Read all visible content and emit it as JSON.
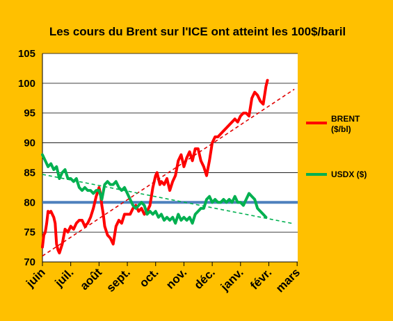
{
  "colors": {
    "background": "#ffc000",
    "plot_area": "#ffffff",
    "brent": "#ff0000",
    "usdx": "#00b050",
    "brent_trend": "#e00000",
    "usdx_trend": "#00b050",
    "reference_line": "#4f81bd",
    "gridline": "#000000"
  },
  "chart_data": {
    "type": "line",
    "title": "Les cours du Brent sur l'ICE  ont atteint les 100$/baril",
    "xlabel": "",
    "ylabel": "",
    "ylim": [
      70,
      105
    ],
    "yticks": [
      70,
      75,
      80,
      85,
      90,
      95,
      100,
      105
    ],
    "categories": [
      "juin",
      "juil.",
      "août",
      "sept.",
      "oct.",
      "nov.",
      "déc.",
      "janv.",
      "févr.",
      "mars"
    ],
    "grid": "horizontal",
    "legend_position": "right",
    "series": [
      {
        "name": "BRENT ($/bl)",
        "legend_lines": [
          "BRENT",
          "($/bl)"
        ],
        "color": "#ff0000",
        "x": [
          0,
          0.05,
          0.1,
          0.15,
          0.2,
          0.25,
          0.3,
          0.35,
          0.4,
          0.45,
          0.5,
          0.55,
          0.6,
          0.7,
          0.8,
          0.9,
          1.0,
          1.1,
          1.2,
          1.3,
          1.4,
          1.5,
          1.6,
          1.7,
          1.8,
          1.9,
          2.0,
          2.05,
          2.1,
          2.15,
          2.2,
          2.3,
          2.4,
          2.5,
          2.6,
          2.7,
          2.8,
          2.9,
          3.0,
          3.1,
          3.2,
          3.3,
          3.4,
          3.5,
          3.6,
          3.7,
          3.8,
          3.9,
          4.0,
          4.05,
          4.1,
          4.15,
          4.2,
          4.3,
          4.4,
          4.5,
          4.6,
          4.7,
          4.8,
          4.9,
          5.0,
          5.1,
          5.2,
          5.3,
          5.4,
          5.5,
          5.6,
          5.7,
          5.8,
          5.9,
          6.0,
          6.1,
          6.2,
          6.3,
          6.4,
          6.5,
          6.6,
          6.7,
          6.8,
          6.9,
          7.0,
          7.1,
          7.2,
          7.3,
          7.4,
          7.5,
          7.6,
          7.7,
          7.8,
          7.9,
          7.95
        ],
        "values": [
          72.5,
          74.5,
          75.0,
          76.5,
          78.5,
          78.3,
          78.5,
          78.0,
          77.5,
          76.5,
          73.0,
          72.0,
          71.5,
          73.0,
          75.5,
          75.0,
          76.0,
          75.5,
          76.5,
          77.0,
          77.0,
          76.0,
          76.5,
          77.5,
          79.0,
          81.0,
          82.5,
          81.5,
          79.5,
          78.0,
          76.0,
          74.5,
          74.0,
          73.0,
          76.0,
          77.0,
          76.5,
          78.0,
          78.0,
          78.0,
          79.0,
          79.5,
          78.5,
          79.0,
          78.0,
          78.5,
          79.5,
          82.5,
          84.5,
          85.0,
          84.0,
          83.0,
          83.5,
          83.0,
          84.0,
          82.0,
          83.5,
          84.5,
          87.0,
          88.0,
          86.0,
          87.5,
          88.5,
          87.0,
          89.0,
          89.0,
          87.0,
          86.0,
          84.5,
          87.0,
          90.0,
          91.0,
          91.0,
          91.5,
          92.0,
          92.5,
          93.0,
          93.5,
          94.0,
          93.5,
          94.5,
          95.0,
          95.0,
          94.5,
          97.5,
          98.5,
          98.0,
          97.0,
          96.5,
          99.5,
          100.5
        ]
      },
      {
        "name": "USDX ($)",
        "legend_lines": [
          "USDX ($)"
        ],
        "color": "#00b050",
        "x": [
          0,
          0.1,
          0.2,
          0.3,
          0.4,
          0.5,
          0.6,
          0.7,
          0.8,
          0.9,
          1.0,
          1.1,
          1.2,
          1.3,
          1.4,
          1.5,
          1.6,
          1.7,
          1.8,
          1.9,
          2.0,
          2.1,
          2.2,
          2.3,
          2.4,
          2.5,
          2.6,
          2.7,
          2.8,
          2.9,
          3.0,
          3.1,
          3.2,
          3.3,
          3.4,
          3.5,
          3.6,
          3.7,
          3.8,
          3.9,
          4.0,
          4.1,
          4.2,
          4.3,
          4.4,
          4.5,
          4.6,
          4.7,
          4.8,
          4.9,
          5.0,
          5.1,
          5.2,
          5.3,
          5.4,
          5.5,
          5.6,
          5.7,
          5.8,
          5.9,
          6.0,
          6.1,
          6.2,
          6.3,
          6.4,
          6.5,
          6.6,
          6.7,
          6.8,
          6.9,
          7.0,
          7.1,
          7.2,
          7.3,
          7.4,
          7.5,
          7.6,
          7.7,
          7.8,
          7.9
        ],
        "values": [
          88.0,
          87.0,
          86.0,
          86.5,
          85.5,
          86.0,
          84.0,
          85.0,
          85.5,
          84.0,
          84.0,
          83.5,
          84.0,
          82.5,
          82.0,
          82.5,
          82.0,
          82.0,
          81.5,
          82.0,
          82.0,
          80.5,
          83.0,
          83.5,
          83.0,
          83.0,
          83.5,
          82.5,
          82.0,
          82.5,
          81.5,
          80.5,
          79.5,
          79.0,
          79.5,
          80.0,
          79.5,
          78.0,
          78.5,
          78.0,
          78.5,
          77.5,
          78.0,
          77.0,
          77.5,
          77.0,
          77.5,
          76.5,
          78.0,
          77.0,
          77.5,
          77.0,
          77.5,
          76.5,
          78.0,
          78.5,
          79.0,
          79.0,
          80.5,
          81.0,
          80.0,
          80.5,
          80.0,
          80.0,
          80.5,
          80.0,
          80.5,
          80.0,
          81.0,
          80.0,
          80.0,
          79.5,
          80.5,
          81.5,
          81.0,
          80.5,
          79.0,
          78.5,
          78.0,
          77.5
        ]
      }
    ],
    "trendlines": [
      {
        "of": "BRENT ($/bl)",
        "x": [
          0,
          8.9
        ],
        "values": [
          71.0,
          99.0
        ]
      },
      {
        "of": "USDX ($)",
        "x": [
          0,
          8.9
        ],
        "values": [
          84.7,
          76.4
        ]
      }
    ],
    "reference_lines": [
      {
        "value": 80.0
      }
    ]
  }
}
